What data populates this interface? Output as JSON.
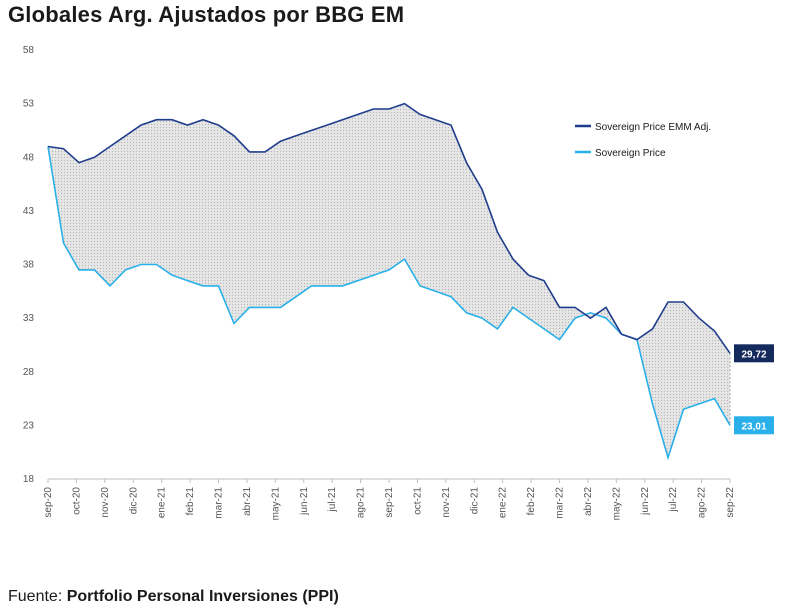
{
  "title": "Globales Arg. Ajustados por BBG EM",
  "source_prefix": "Fuente: ",
  "source_name": "Portfolio Personal Inversiones (PPI)",
  "colors": {
    "adj": "#1f3d8c",
    "price": "#29b0e8",
    "fill": "#d9d9d9",
    "adj_label_bg": "#152a5c",
    "price_label_bg": "#29b0e8"
  },
  "chart_data": {
    "type": "line",
    "title": "Globales Arg. Ajustados por BBG EM",
    "xlabel": "",
    "ylabel": "",
    "ylim": [
      18,
      58
    ],
    "yticks": [
      "58",
      "53",
      "48",
      "43",
      "38",
      "33",
      "28",
      "23",
      "18"
    ],
    "x_tick_labels": [
      "sep-20",
      "oct-20",
      "nov-20",
      "dic-20",
      "ene-21",
      "feb-21",
      "mar-21",
      "abr-21",
      "may-21",
      "jun-21",
      "jul-21",
      "ago-21",
      "sep-21",
      "oct-21",
      "nov-21",
      "dic-21",
      "ene-22",
      "feb-22",
      "mar-22",
      "abr-22",
      "may-22",
      "jun-22",
      "jul-22",
      "ago-22",
      "sep-22"
    ],
    "legend_position": "top-right",
    "grid": false,
    "shaded_area_between_series": true,
    "series": [
      {
        "name": "Sovereign Price EMM Adj.",
        "end_label": "29,72",
        "values": [
          49,
          48.8,
          47.5,
          48,
          49,
          50,
          51,
          51.5,
          51.5,
          51,
          51.5,
          51,
          50,
          48.5,
          48.5,
          49.5,
          50,
          50.5,
          51,
          51.5,
          52,
          52.5,
          52.5,
          53,
          52,
          51.5,
          51,
          47.5,
          45,
          41,
          38.5,
          37,
          36.5,
          34,
          34,
          33,
          34,
          31.5,
          31,
          32,
          34.5,
          34.5,
          33,
          31.8,
          29.72
        ]
      },
      {
        "name": "Sovereign Price",
        "end_label": "23,01",
        "values": [
          49,
          40,
          37.5,
          37.5,
          36,
          37.5,
          38,
          38,
          37,
          36.5,
          36,
          36,
          32.5,
          34,
          34,
          34,
          35,
          36,
          36,
          36,
          36.5,
          37,
          37.5,
          38.5,
          36,
          35.5,
          35,
          33.5,
          33,
          32,
          34,
          33,
          32,
          31,
          33,
          33.5,
          33,
          31.5,
          31,
          25,
          20,
          24.5,
          25,
          25.5,
          23.01
        ]
      }
    ]
  }
}
